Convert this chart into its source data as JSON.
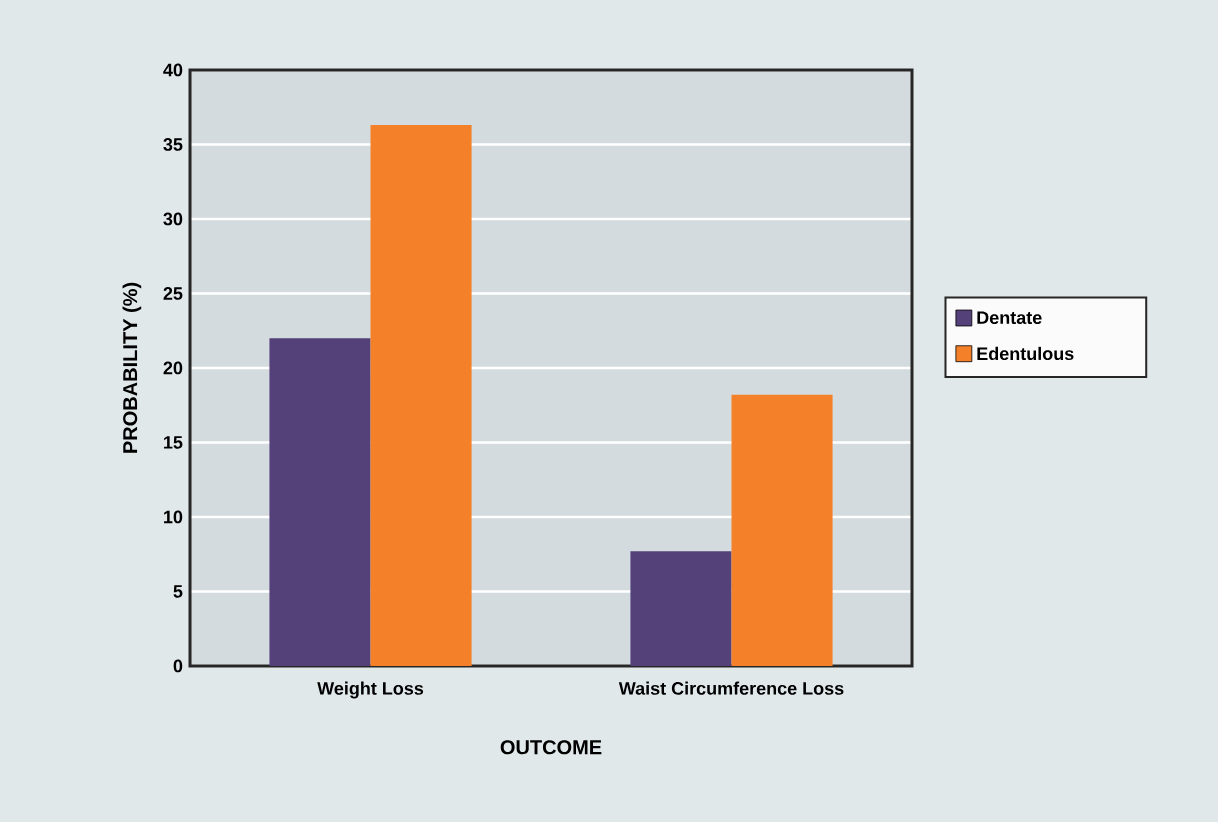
{
  "chart_data": {
    "type": "bar",
    "xlabel": "OUTCOME",
    "ylabel": "PROBABILITY (%)",
    "categories": [
      "Weight Loss",
      "Waist Circumference Loss"
    ],
    "series": [
      {
        "name": "Dentate",
        "color": "#55417a",
        "values": [
          22,
          7.7
        ]
      },
      {
        "name": "Edentulous",
        "color": "#f4802a",
        "values": [
          36.3,
          18.2
        ]
      }
    ],
    "ylim": [
      0,
      40
    ],
    "yticks": [
      0,
      5,
      10,
      15,
      20,
      25,
      30,
      35,
      40
    ],
    "grid": "y",
    "legend": "right"
  }
}
